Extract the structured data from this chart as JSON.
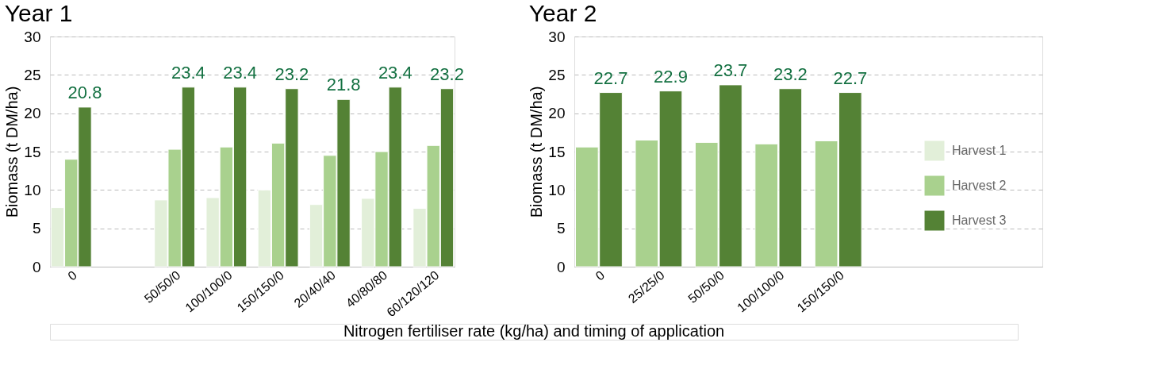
{
  "chart_data": [
    {
      "type": "bar",
      "title": "Year 1",
      "ylabel": "Biomass (t DM/ha)",
      "xlabel": "Nitrogen fertiliser rate (kg/ha) and timing of application",
      "categories": [
        "0",
        null,
        "50/50/0",
        "100/100/0",
        "150/150/0",
        "20/40/40",
        "40/80/80",
        "60/120/120"
      ],
      "series": [
        {
          "color": "#e2efd9",
          "values": [
            7.7,
            null,
            8.7,
            9.0,
            10.0,
            8.1,
            8.9,
            7.6
          ]
        },
        {
          "color": "#a9d18e",
          "values": [
            14.0,
            null,
            15.3,
            15.6,
            16.1,
            14.5,
            15.0,
            15.8
          ]
        },
        {
          "color": "#548235",
          "values": [
            20.8,
            null,
            23.4,
            23.4,
            23.2,
            21.8,
            23.4,
            23.2
          ],
          "value_labels": [
            "20.8",
            null,
            "23.4",
            "23.4",
            "23.2",
            "21.8",
            "23.4",
            "23.2"
          ]
        }
      ],
      "ylim": [
        0,
        30
      ],
      "yticks": [
        0,
        5,
        10,
        15,
        20,
        25,
        30
      ],
      "grid": "y",
      "legend": false
    },
    {
      "type": "bar",
      "title": "Year 2",
      "ylabel": "Biomass (t DM/ha)",
      "categories": [
        "0",
        "25/25/0",
        "50/50/0",
        "100/100/0",
        "150/150/0",
        null,
        null,
        null
      ],
      "series": [
        {
          "name": "Harvest 1",
          "color": "#e2efd9",
          "values": [
            null,
            null,
            null,
            null,
            null,
            null,
            null,
            null
          ]
        },
        {
          "name": "Harvest 2",
          "color": "#a9d18e",
          "values": [
            15.6,
            16.5,
            16.2,
            16.0,
            16.4,
            null,
            null,
            null
          ]
        },
        {
          "name": "Harvest 3",
          "color": "#548235",
          "values": [
            22.7,
            22.9,
            23.7,
            23.2,
            22.7,
            null,
            null,
            null
          ],
          "value_labels": [
            "22.7",
            "22.9",
            "23.7",
            "23.2",
            "22.7",
            null,
            null,
            null
          ]
        }
      ],
      "ylim": [
        0,
        30
      ],
      "yticks": [
        0,
        5,
        10,
        15,
        20,
        25,
        30
      ],
      "grid": "y",
      "legend": "right"
    }
  ]
}
